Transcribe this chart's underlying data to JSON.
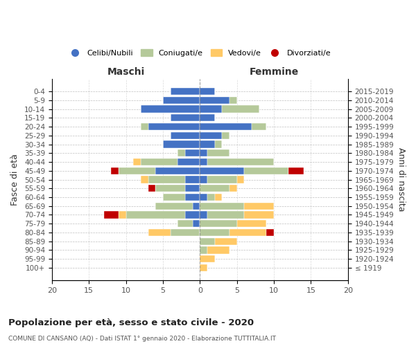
{
  "age_groups": [
    "100+",
    "95-99",
    "90-94",
    "85-89",
    "80-84",
    "75-79",
    "70-74",
    "65-69",
    "60-64",
    "55-59",
    "50-54",
    "45-49",
    "40-44",
    "35-39",
    "30-34",
    "25-29",
    "20-24",
    "15-19",
    "10-14",
    "5-9",
    "0-4"
  ],
  "birth_years": [
    "≤ 1919",
    "1920-1924",
    "1925-1929",
    "1930-1934",
    "1935-1939",
    "1940-1944",
    "1945-1949",
    "1950-1954",
    "1955-1959",
    "1960-1964",
    "1965-1969",
    "1970-1974",
    "1975-1979",
    "1980-1984",
    "1985-1989",
    "1990-1994",
    "1995-1999",
    "2000-2004",
    "2005-2009",
    "2010-2014",
    "2015-2019"
  ],
  "colors": {
    "celibe": "#4472c4",
    "coniugato": "#b5c99a",
    "vedovo": "#ffc966",
    "divorziato": "#c00000"
  },
  "maschi": {
    "celibe": [
      0,
      0,
      0,
      0,
      0,
      1,
      2,
      1,
      2,
      2,
      2,
      6,
      3,
      2,
      5,
      4,
      7,
      4,
      8,
      5,
      4
    ],
    "coniugato": [
      0,
      0,
      0,
      0,
      4,
      2,
      8,
      5,
      3,
      4,
      5,
      5,
      5,
      1,
      0,
      0,
      1,
      0,
      0,
      0,
      0
    ],
    "vedovo": [
      0,
      0,
      0,
      0,
      3,
      0,
      1,
      0,
      0,
      0,
      1,
      0,
      1,
      0,
      0,
      0,
      0,
      0,
      0,
      0,
      0
    ],
    "divorziato": [
      0,
      0,
      0,
      0,
      0,
      0,
      2,
      0,
      0,
      1,
      0,
      1,
      0,
      0,
      0,
      0,
      0,
      0,
      0,
      0,
      0
    ]
  },
  "femmine": {
    "nubile": [
      0,
      0,
      0,
      0,
      0,
      0,
      1,
      0,
      1,
      0,
      1,
      6,
      1,
      1,
      2,
      3,
      7,
      2,
      3,
      4,
      2
    ],
    "coniugata": [
      0,
      0,
      1,
      2,
      4,
      5,
      5,
      6,
      1,
      4,
      4,
      6,
      9,
      3,
      1,
      1,
      2,
      0,
      5,
      1,
      0
    ],
    "vedova": [
      1,
      2,
      3,
      3,
      5,
      4,
      4,
      4,
      1,
      1,
      1,
      0,
      0,
      0,
      0,
      0,
      0,
      0,
      0,
      0,
      0
    ],
    "divorziata": [
      0,
      0,
      0,
      0,
      1,
      0,
      0,
      0,
      0,
      0,
      0,
      2,
      0,
      0,
      0,
      0,
      0,
      0,
      0,
      0,
      0
    ]
  },
  "xlim": 20,
  "title": "Popolazione per età, sesso e stato civile - 2020",
  "subtitle": "COMUNE DI CANSANO (AQ) - Dati ISTAT 1° gennaio 2020 - Elaborazione TUTTITALIA.IT",
  "ylabel_left": "Fasce di età",
  "ylabel_right": "Anni di nascita",
  "xlabel_left": "Maschi",
  "xlabel_right": "Femmine",
  "legend_labels": [
    "Celibi/Nubili",
    "Coniugati/e",
    "Vedovi/e",
    "Divorziati/e"
  ],
  "background_color": "#ffffff",
  "bar_height": 0.8
}
